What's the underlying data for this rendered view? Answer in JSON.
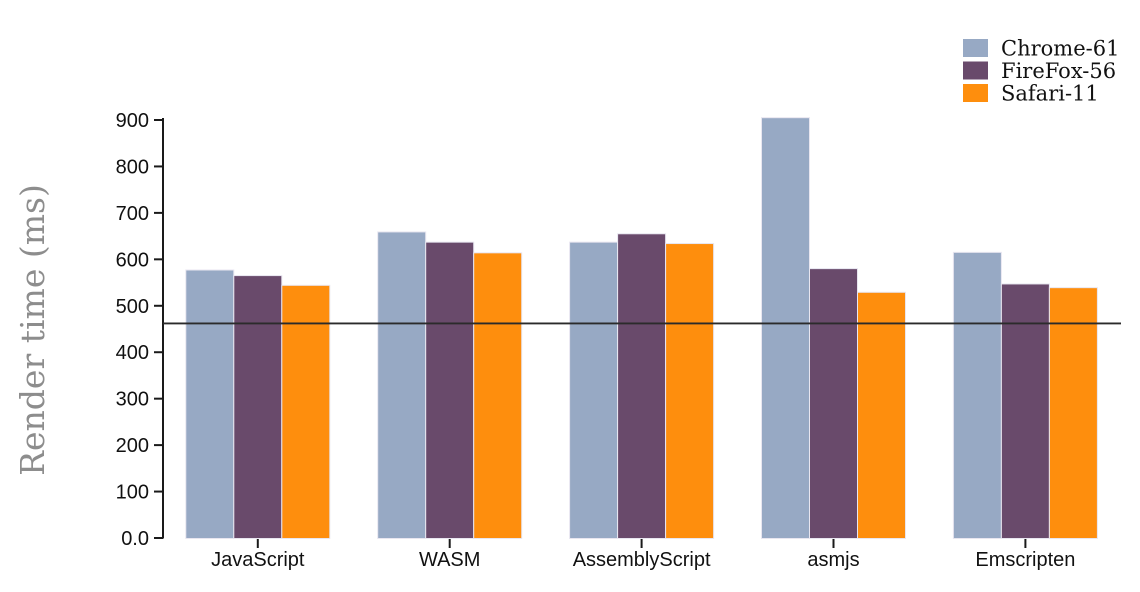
{
  "chart_data": {
    "type": "bar",
    "title": "",
    "xlabel": "",
    "ylabel": "Render time (ms)",
    "categories": [
      "JavaScript",
      "WASM",
      "AssemblyScript",
      "asmjs",
      "Emscripten"
    ],
    "series": [
      {
        "name": "Chrome-61",
        "color": "#97a9c4",
        "values": [
          577,
          659,
          637,
          905,
          615
        ]
      },
      {
        "name": "FireFox-56",
        "color": "#694a6b",
        "values": [
          565,
          637,
          655,
          580,
          547
        ]
      },
      {
        "name": "Safari-11",
        "color": "#fe8e0d",
        "values": [
          544,
          614,
          634,
          529,
          539
        ]
      }
    ],
    "ylim": [
      0,
      900
    ],
    "ytick_labels": [
      "0.0",
      "100",
      "200",
      "300",
      "400",
      "500",
      "600",
      "700",
      "800",
      "900"
    ],
    "grid": false,
    "legend_position": "top-right",
    "reference_line": {
      "value": 462,
      "color": "#2b2b2b"
    },
    "axis_color": "#1a1a1a",
    "bar_edge_color": "#e8e6f0",
    "background_color": "#ffffff"
  }
}
